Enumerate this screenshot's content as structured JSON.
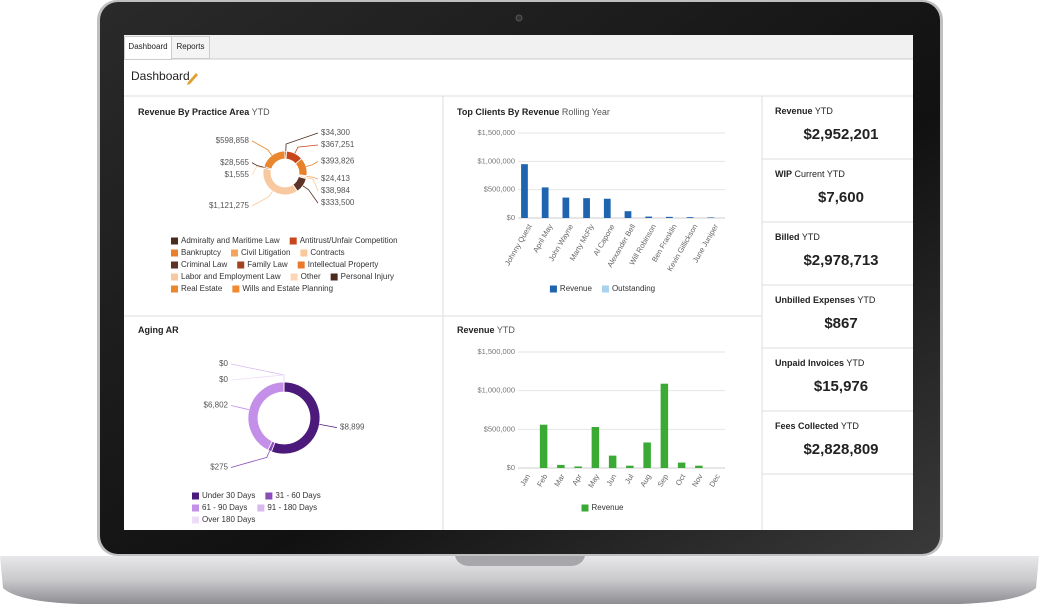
{
  "tabs": [
    "Dashboard",
    "Reports"
  ],
  "page_title": "Dashboard",
  "kpis": [
    {
      "label": "Revenue",
      "qualifier": "YTD",
      "value": "$2,952,201"
    },
    {
      "label": "WIP",
      "qualifier": "Current YTD",
      "value": "$7,600"
    },
    {
      "label": "Billed",
      "qualifier": "YTD",
      "value": "$2,978,713"
    },
    {
      "label": "Unbilled Expenses",
      "qualifier": "YTD",
      "value": "$867"
    },
    {
      "label": "Unpaid Invoices",
      "qualifier": "YTD",
      "value": "$15,976"
    },
    {
      "label": "Fees Collected",
      "qualifier": "YTD",
      "value": "$2,828,809"
    }
  ],
  "chart_data": [
    {
      "type": "donut",
      "title": "Revenue By Practice Area",
      "subtitle": "YTD",
      "categories": [
        "Admiralty and Maritime Law",
        "Antitrust/Unfair Competition",
        "Bankruptcy",
        "Civil Litigation",
        "Contracts",
        "Criminal Law",
        "Family Law",
        "Intellectual Property",
        "Labor and Employment Law",
        "Other",
        "Personal Injury",
        "Real Estate",
        "Wills and Estate Planning"
      ],
      "values": [
        34300,
        367251,
        393826,
        24413,
        38984,
        333500,
        0,
        0,
        1121275,
        1555,
        28565,
        598858,
        0
      ],
      "value_labels": [
        "$34,300",
        "$367,251",
        "$393,826",
        "$24,413",
        "$38,984",
        "$333,500",
        null,
        null,
        "$1,121,275",
        "$1,555",
        "$28,565",
        "$598,858",
        null
      ],
      "colors": [
        "#4a2c1f",
        "#c8461b",
        "#e8802a",
        "#f4a460",
        "#f9c89b",
        "#5c3326",
        "#a0431e",
        "#e97a2b",
        "#f8c9a0",
        "#fcd6b5",
        "#4d2a1e",
        "#e9862e",
        "#f08a30"
      ],
      "legend": "bottom"
    },
    {
      "type": "bar",
      "title": "Top Clients By Revenue",
      "subtitle": "Rolling Year",
      "categories": [
        "Johnny Quest",
        "April May",
        "John Wayne",
        "Marty McFly",
        "Al Capone",
        "Alexander Bell",
        "Will Robinson",
        "Ben Franklin",
        "Kevin Gillickson",
        "June Juniper"
      ],
      "series": [
        {
          "name": "Revenue",
          "color": "#1f64b0",
          "values": [
            950000,
            540000,
            360000,
            350000,
            340000,
            120000,
            25000,
            20000,
            15000,
            10000
          ]
        },
        {
          "name": "Outstanding",
          "color": "#a9d2f0",
          "values": [
            0,
            0,
            0,
            0,
            0,
            0,
            0,
            0,
            0,
            0
          ]
        }
      ],
      "ylim": [
        0,
        1500000
      ],
      "yticks": [
        {
          "value": 0,
          "label": "$0"
        },
        {
          "value": 500000,
          "label": "$500,000"
        },
        {
          "value": 1000000,
          "label": "$1,000,000"
        },
        {
          "value": 1500000,
          "label": "$1,500,000"
        }
      ],
      "grid": true,
      "legend": "bottom"
    },
    {
      "type": "donut",
      "title": "Aging AR",
      "categories": [
        "Under 30 Days",
        "31 - 60 Days",
        "61 - 90 Days",
        "91 - 180 Days",
        "Over 180 Days"
      ],
      "values": [
        8899,
        275,
        6802,
        0,
        0
      ],
      "value_labels": [
        "$8,899",
        "$275",
        "$6,802",
        "$0",
        "$0"
      ],
      "colors": [
        "#4b1a7a",
        "#8a4cb8",
        "#c38fe8",
        "#d9b9ef",
        "#ecdcf7"
      ],
      "legend": "bottom"
    },
    {
      "type": "bar",
      "title": "Revenue",
      "subtitle": "YTD",
      "categories": [
        "Jan",
        "Feb",
        "Mar",
        "Apr",
        "May",
        "Jun",
        "Jul",
        "Aug",
        "Sep",
        "Oct",
        "Nov",
        "Dec"
      ],
      "series": [
        {
          "name": "Revenue",
          "color": "#3aaa35",
          "values": [
            0,
            560000,
            40000,
            20000,
            530000,
            160000,
            30000,
            330000,
            1090000,
            70000,
            30000,
            0
          ]
        }
      ],
      "ylim": [
        0,
        1500000
      ],
      "yticks": [
        {
          "value": 0,
          "label": "$0"
        },
        {
          "value": 500000,
          "label": "$500,000"
        },
        {
          "value": 1000000,
          "label": "$1,000,000"
        },
        {
          "value": 1500000,
          "label": "$1,500,000"
        }
      ],
      "grid": true,
      "legend": "bottom"
    }
  ]
}
